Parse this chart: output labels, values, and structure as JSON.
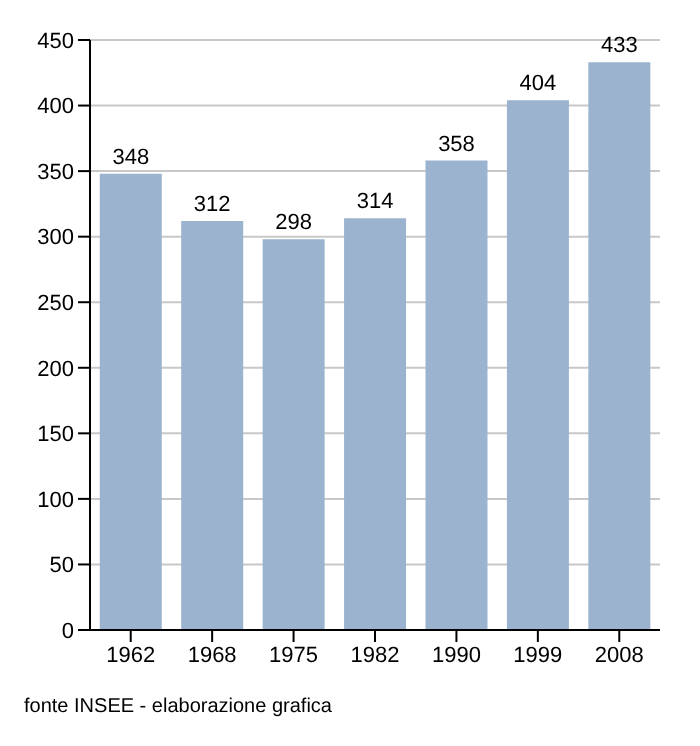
{
  "chart_data": {
    "type": "bar",
    "categories": [
      "1962",
      "1968",
      "1975",
      "1982",
      "1990",
      "1999",
      "2008"
    ],
    "values": [
      348,
      312,
      298,
      314,
      358,
      404,
      433
    ],
    "color": "#9bb3cf",
    "ylim": [
      0,
      450
    ],
    "yticks": [
      0,
      50,
      100,
      150,
      200,
      250,
      300,
      350,
      400,
      450
    ],
    "grid": "y",
    "data_labels": true,
    "annotations": [
      "fonte INSEE - elaborazione grafica"
    ]
  }
}
